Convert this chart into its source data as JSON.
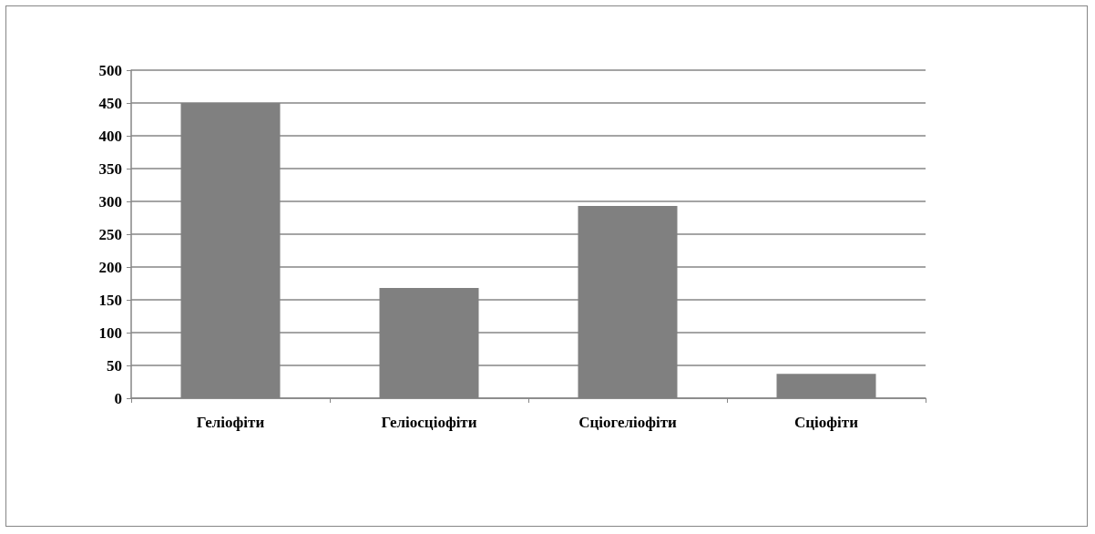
{
  "chart_data": {
    "type": "bar",
    "categories": [
      "Геліофіти",
      "Геліосціофіти",
      "Сціогеліофіти",
      "Сціофіти"
    ],
    "values": [
      450,
      168,
      293,
      37
    ],
    "color": "#808080",
    "ylim": [
      0,
      500
    ],
    "yticks": [
      0,
      50,
      100,
      150,
      200,
      250,
      300,
      350,
      400,
      450,
      500
    ],
    "grid": "y"
  }
}
